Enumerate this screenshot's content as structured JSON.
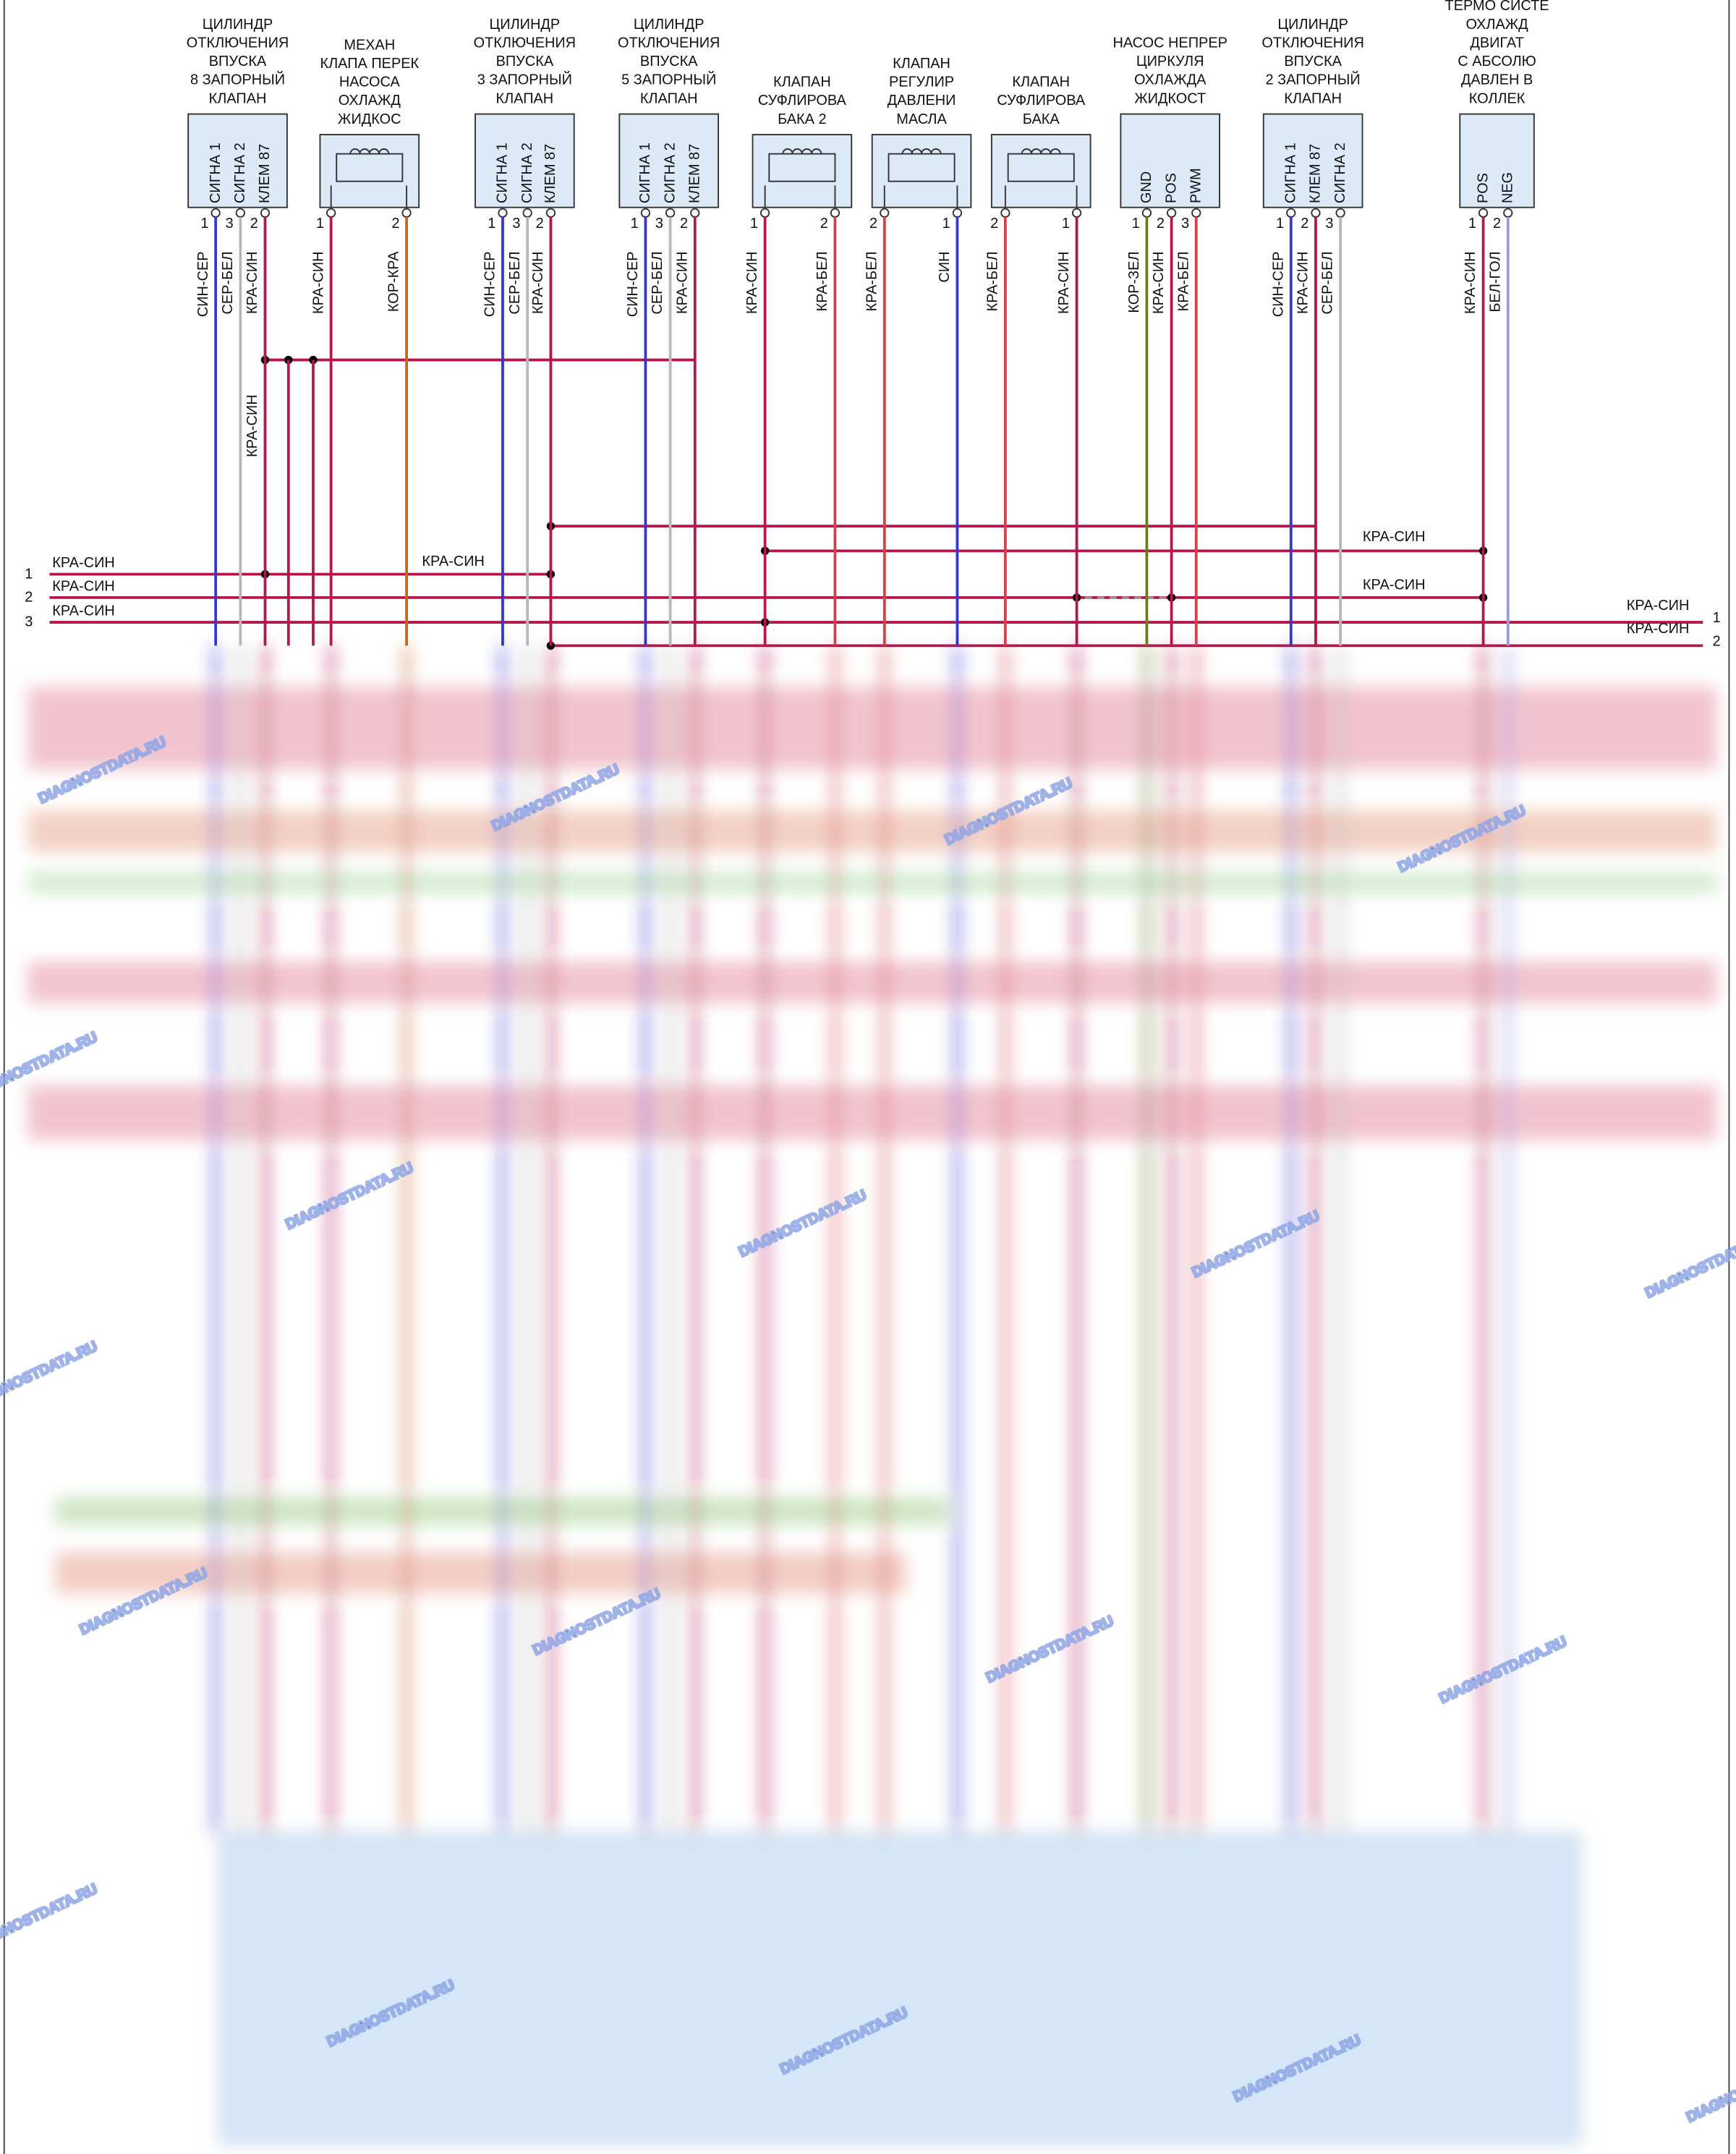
{
  "components": [
    {
      "title": [
        "ЦИЛИНДР",
        "ОТКЛЮЧЕНИЯ",
        "ВПУСКА",
        "8 ЗАПОРНЫЙ",
        "КЛАПАН"
      ],
      "pins": [
        {
          "number": "1",
          "name": "СИГНА 1",
          "wire": "СИН-СЕР",
          "color": "#3636d2"
        },
        {
          "number": "3",
          "name": "СИГНА 2",
          "wire": "СЕР-БЕЛ",
          "color": "#b8b8b8"
        },
        {
          "number": "2",
          "name": "КЛЕМ 87",
          "wire": "КРА-СИН",
          "color": "#b3174d"
        }
      ]
    },
    {
      "title": [
        "МЕХАН",
        "КЛАПА ПЕРЕК",
        "НАСОСА",
        "ОХЛАЖД",
        "ЖИДКОС"
      ],
      "pins": [
        {
          "number": "1",
          "wire": "КРА-СИН",
          "color": "#b3174d"
        },
        {
          "number": "2",
          "wire": "КОР-КРА",
          "color": "#c8641e"
        }
      ]
    },
    {
      "title": [
        "ЦИЛИНДР",
        "ОТКЛЮЧЕНИЯ",
        "ВПУСКА",
        "3 ЗАПОРНЫЙ",
        "КЛАПАН"
      ],
      "pins": [
        {
          "number": "1",
          "name": "СИГНА 1",
          "wire": "СИН-СЕР",
          "color": "#3636d2"
        },
        {
          "number": "3",
          "name": "СИГНА 2",
          "wire": "СЕР-БЕЛ",
          "color": "#b8b8b8"
        },
        {
          "number": "2",
          "name": "КЛЕМ 87",
          "wire": "КРА-СИН",
          "color": "#b3174d"
        }
      ]
    },
    {
      "title": [
        "ЦИЛИНДР",
        "ОТКЛЮЧЕНИЯ",
        "ВПУСКА",
        "5 ЗАПОРНЫЙ",
        "КЛАПАН"
      ],
      "pins": [
        {
          "number": "1",
          "name": "СИГНА 1",
          "wire": "СИН-СЕР",
          "color": "#3636d2"
        },
        {
          "number": "3",
          "name": "СИГНА 2",
          "wire": "СЕР-БЕЛ",
          "color": "#b8b8b8"
        },
        {
          "number": "2",
          "name": "КЛЕМ 87",
          "wire": "КРА-СИН",
          "color": "#b3174d"
        }
      ]
    },
    {
      "title": [
        "КЛАПАН",
        "СУФЛИРОВА",
        "БАКА 2"
      ],
      "pins": [
        {
          "number": "1",
          "wire": "КРА-СИН",
          "color": "#b3174d"
        },
        {
          "number": "2",
          "wire": "КРА-БЕЛ",
          "color": "#d4404c"
        }
      ]
    },
    {
      "title": [
        "КЛАПАН",
        "РЕГУЛИР",
        "ДАВЛЕНИ",
        "МАСЛА"
      ],
      "pins": [
        {
          "number": "2",
          "wire": "КРА-БЕЛ",
          "color": "#d4404c"
        },
        {
          "number": "1",
          "wire": "СИН",
          "color": "#3636d2"
        }
      ]
    },
    {
      "title": [
        "КЛАПАН",
        "СУФЛИРОВА",
        "БАКА"
      ],
      "pins": [
        {
          "number": "2",
          "wire": "КРА-БЕЛ",
          "color": "#d4404c"
        },
        {
          "number": "1",
          "wire": "КРА-СИН",
          "color": "#b3174d"
        }
      ]
    },
    {
      "title": [
        "НАСОС НЕПРЕР",
        "ЦИРКУЛЯ",
        "ОХЛАЖДА",
        "ЖИДКОСТ"
      ],
      "pins": [
        {
          "number": "1",
          "name": "GND",
          "wire": "КОР-ЗЕЛ",
          "color": "#6b7a1e"
        },
        {
          "number": "2",
          "name": "POS",
          "wire": "КРА-СИН",
          "color": "#b3174d"
        },
        {
          "number": "3",
          "name": "PWM",
          "wire": "КРА-БЕЛ",
          "color": "#d4404c"
        }
      ]
    },
    {
      "title": [
        "ЦИЛИНДР",
        "ОТКЛЮЧЕНИЯ",
        "ВПУСКА",
        "2 ЗАПОРНЫЙ",
        "КЛАПАН"
      ],
      "pins": [
        {
          "number": "1",
          "name": "СИГНА 1",
          "wire": "СИН-СЕР",
          "color": "#3636d2"
        },
        {
          "number": "2",
          "name": "КЛЕМ 87",
          "wire": "КРА-СИН",
          "color": "#b3174d"
        },
        {
          "number": "3",
          "name": "СИГНА 2",
          "wire": "СЕР-БЕЛ",
          "color": "#b8b8b8"
        }
      ]
    },
    {
      "title": [
        "ТЕРМО СИСТЕ",
        "ОХЛАЖД",
        "ДВИГАТ",
        "С АБСОЛЮ",
        "ДАВЛЕН В",
        "КОЛЛЕК"
      ],
      "pins": [
        {
          "number": "1",
          "name": "POS",
          "wire": "КРА-СИН",
          "color": "#b3174d"
        },
        {
          "number": "2",
          "name": "NEG",
          "wire": "БЕЛ-ГОЛ",
          "color": "#9a9ade"
        }
      ]
    }
  ],
  "left_bus": [
    {
      "number": "1",
      "label": "КРА-СИН"
    },
    {
      "number": "2",
      "label": "КРА-СИН"
    },
    {
      "number": "3",
      "label": "КРА-СИН"
    }
  ],
  "right_bus": [
    {
      "number": "1",
      "label": "КРА-СИН"
    },
    {
      "number": "2",
      "label": "КРА-СИН"
    }
  ],
  "inline_labels": [
    "КРА-СИН",
    "КРА-СИН",
    "КРА-СИН",
    "КРА-СИН"
  ],
  "watermark": "DIAGNOSTDATA.RU"
}
